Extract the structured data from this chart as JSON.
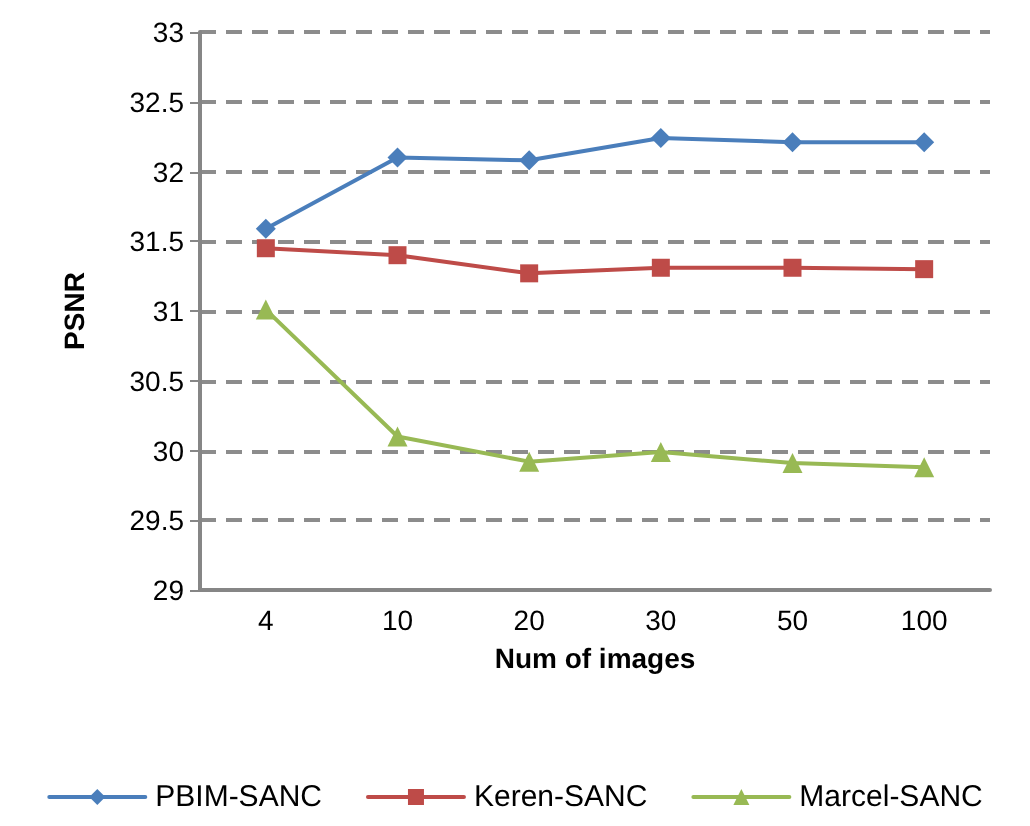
{
  "chart_data": {
    "type": "line",
    "xlabel": "Num of images",
    "ylabel": "PSNR",
    "categories": [
      "4",
      "10",
      "20",
      "30",
      "50",
      "100"
    ],
    "series": [
      {
        "name": "PBIM-SANC",
        "color": "#4a7ebb",
        "marker": "diamond",
        "values": [
          31.59,
          32.1,
          32.08,
          32.24,
          32.21,
          32.21
        ]
      },
      {
        "name": "Keren-SANC",
        "color": "#be4b48",
        "marker": "square",
        "values": [
          31.45,
          31.4,
          31.27,
          31.31,
          31.31,
          31.3
        ]
      },
      {
        "name": "Marcel-SANC",
        "color": "#98b954",
        "marker": "triangle",
        "values": [
          31.01,
          30.1,
          29.92,
          29.99,
          29.91,
          29.88
        ]
      }
    ],
    "ylim": [
      29,
      33
    ],
    "yticks": [
      29,
      29.5,
      30,
      30.5,
      31,
      31.5,
      32,
      32.5,
      33
    ],
    "grid": "y",
    "legend": "bottom",
    "line_style": "solid"
  }
}
